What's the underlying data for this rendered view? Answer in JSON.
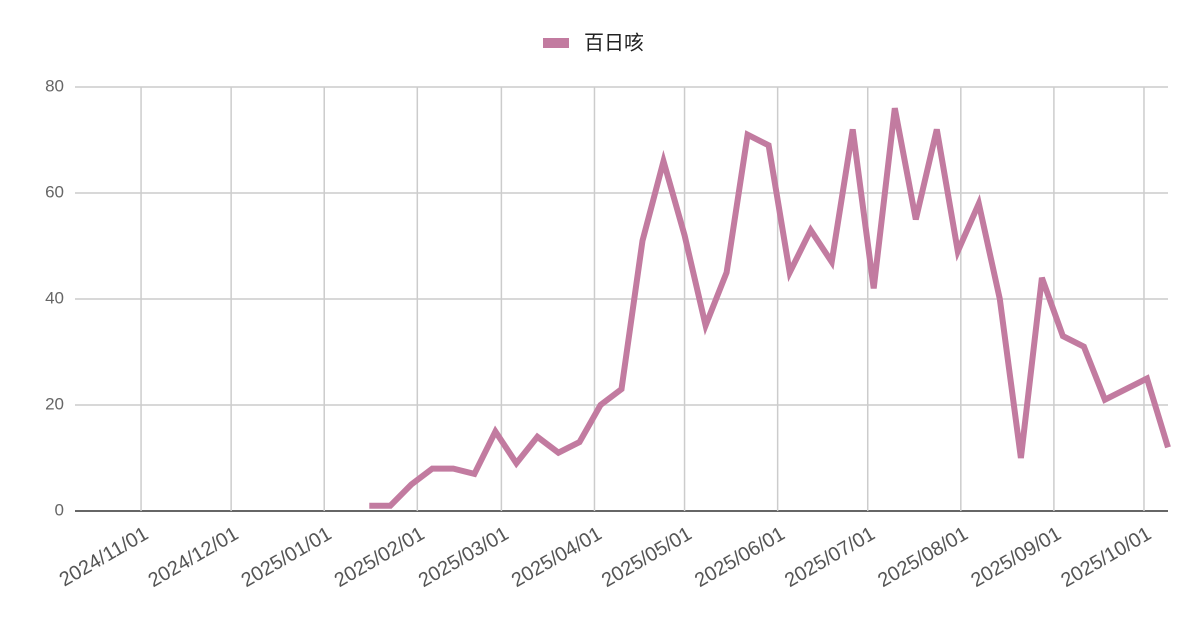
{
  "chart_data": {
    "type": "line",
    "x": [
      "2025/01/16",
      "2025/01/23",
      "2025/01/30",
      "2025/02/06",
      "2025/02/13",
      "2025/02/20",
      "2025/02/27",
      "2025/03/06",
      "2025/03/13",
      "2025/03/20",
      "2025/03/27",
      "2025/04/03",
      "2025/04/10",
      "2025/04/17",
      "2025/04/24",
      "2025/05/01",
      "2025/05/08",
      "2025/05/15",
      "2025/05/22",
      "2025/05/29",
      "2025/06/05",
      "2025/06/12",
      "2025/06/19",
      "2025/06/26",
      "2025/07/03",
      "2025/07/10",
      "2025/07/17",
      "2025/07/24",
      "2025/07/31",
      "2025/08/07",
      "2025/08/14",
      "2025/08/21",
      "2025/08/28",
      "2025/09/04",
      "2025/09/11",
      "2025/09/18",
      "2025/09/25",
      "2025/10/02",
      "2025/10/09"
    ],
    "series": [
      {
        "name": "百日咳",
        "color": "#c27ba0",
        "values": [
          1,
          1,
          5,
          8,
          8,
          7,
          15,
          9,
          14,
          11,
          13,
          20,
          23,
          51,
          66,
          52,
          35,
          45,
          71,
          69,
          45,
          53,
          47,
          72,
          42,
          76,
          55,
          72,
          49,
          58,
          40,
          10,
          44,
          33,
          31,
          21,
          23,
          25,
          12
        ]
      }
    ],
    "xlim": [
      "2024/10/10",
      "2025/10/09"
    ],
    "xticks": [
      "2024/11/01",
      "2024/12/01",
      "2025/01/01",
      "2025/02/01",
      "2025/03/01",
      "2025/04/01",
      "2025/05/01",
      "2025/06/01",
      "2025/07/01",
      "2025/08/01",
      "2025/09/01",
      "2025/10/01"
    ],
    "ylim": [
      0,
      80
    ],
    "yticks": [
      0,
      20,
      40,
      60,
      80
    ],
    "grid": true,
    "legend": "top"
  }
}
